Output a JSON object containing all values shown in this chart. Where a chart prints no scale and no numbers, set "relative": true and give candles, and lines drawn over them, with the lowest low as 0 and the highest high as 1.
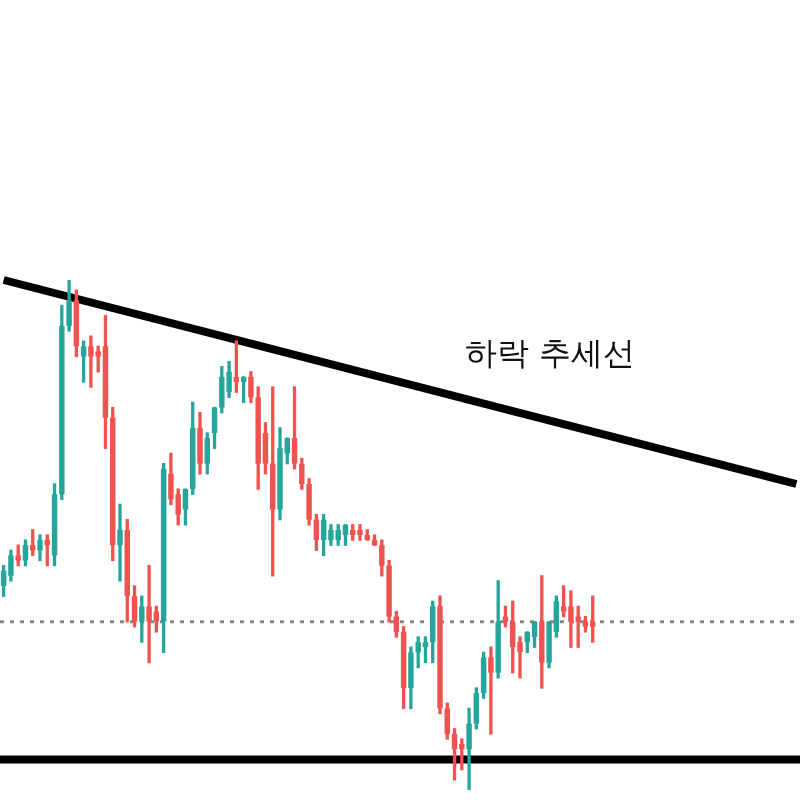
{
  "chart_data": {
    "type": "candlestick",
    "relative": true,
    "categories": [
      null,
      null,
      null,
      null,
      null,
      null,
      null,
      null,
      null,
      null,
      null,
      null,
      null,
      null,
      null,
      null,
      null,
      null,
      null,
      null,
      null,
      null,
      null,
      null,
      null,
      null,
      null,
      null,
      null,
      null,
      null,
      null,
      null,
      null,
      null,
      null,
      null,
      null,
      null,
      null,
      null,
      null,
      null,
      null,
      null,
      null,
      null,
      null,
      null,
      null,
      null,
      null,
      null,
      null,
      null,
      null,
      null,
      null,
      null,
      null,
      null,
      null,
      null,
      null,
      null,
      null,
      null,
      null,
      null,
      null,
      null,
      null,
      null,
      null,
      null,
      null,
      null,
      null,
      null,
      null,
      null,
      null,
      null,
      null,
      null,
      null,
      null,
      null,
      null,
      null,
      null,
      null,
      null,
      null,
      null,
      null,
      null,
      null,
      null,
      null,
      null,
      null,
      null,
      null,
      null,
      null,
      null,
      null,
      null,
      null
    ],
    "ohlc": [
      [
        0.4,
        0.44,
        0.38,
        0.43
      ],
      [
        0.42,
        0.47,
        0.41,
        0.46
      ],
      [
        0.46,
        0.48,
        0.44,
        0.45
      ],
      [
        0.45,
        0.49,
        0.44,
        0.48
      ],
      [
        0.48,
        0.51,
        0.46,
        0.47
      ],
      [
        0.47,
        0.5,
        0.45,
        0.49
      ],
      [
        0.49,
        0.5,
        0.44,
        0.48
      ],
      [
        0.46,
        0.6,
        0.44,
        0.58
      ],
      [
        0.58,
        0.95,
        0.57,
        0.91
      ],
      [
        0.91,
        1.0,
        0.9,
        0.96
      ],
      [
        0.96,
        0.98,
        0.85,
        0.87
      ],
      [
        0.85,
        0.88,
        0.8,
        0.87
      ],
      [
        0.87,
        0.89,
        0.79,
        0.85
      ],
      [
        0.86,
        0.87,
        0.82,
        0.85
      ],
      [
        0.87,
        0.93,
        0.67,
        0.73
      ],
      [
        0.73,
        0.75,
        0.45,
        0.48
      ],
      [
        0.48,
        0.56,
        0.41,
        0.51
      ],
      [
        0.51,
        0.53,
        0.33,
        0.38
      ],
      [
        0.38,
        0.4,
        0.32,
        0.33
      ],
      [
        0.33,
        0.38,
        0.29,
        0.36
      ],
      [
        0.36,
        0.44,
        0.25,
        0.33
      ],
      [
        0.35,
        0.36,
        0.31,
        0.33
      ],
      [
        0.33,
        0.64,
        0.27,
        0.63
      ],
      [
        0.62,
        0.66,
        0.56,
        0.57
      ],
      [
        0.58,
        0.59,
        0.52,
        0.54
      ],
      [
        0.55,
        0.59,
        0.52,
        0.59
      ],
      [
        0.59,
        0.76,
        0.58,
        0.71
      ],
      [
        0.71,
        0.74,
        0.62,
        0.64
      ],
      [
        0.64,
        0.7,
        0.62,
        0.69
      ],
      [
        0.7,
        0.75,
        0.67,
        0.75
      ],
      [
        0.75,
        0.83,
        0.74,
        0.81
      ],
      [
        0.78,
        0.84,
        0.77,
        0.82
      ],
      [
        0.81,
        0.88,
        0.78,
        0.8
      ],
      [
        0.8,
        0.81,
        0.76,
        0.81
      ],
      [
        0.81,
        0.82,
        0.76,
        0.77
      ],
      [
        0.77,
        0.79,
        0.59,
        0.64
      ],
      [
        0.7,
        0.72,
        0.62,
        0.64
      ],
      [
        0.64,
        0.79,
        0.42,
        0.55
      ],
      [
        0.55,
        0.71,
        0.53,
        0.67
      ],
      [
        0.66,
        0.69,
        0.64,
        0.69
      ],
      [
        0.69,
        0.79,
        0.63,
        0.64
      ],
      [
        0.64,
        0.65,
        0.59,
        0.6
      ],
      [
        0.6,
        0.61,
        0.52,
        0.53
      ],
      [
        0.53,
        0.54,
        0.47,
        0.49
      ],
      [
        0.49,
        0.54,
        0.46,
        0.53
      ],
      [
        0.49,
        0.52,
        0.48,
        0.51
      ],
      [
        0.49,
        0.52,
        0.48,
        0.51
      ],
      [
        0.5,
        0.52,
        0.48,
        0.52
      ],
      [
        0.51,
        0.52,
        0.49,
        0.5
      ],
      [
        0.51,
        0.52,
        0.49,
        0.5
      ],
      [
        0.5,
        0.51,
        0.49,
        0.49
      ],
      [
        0.49,
        0.5,
        0.48,
        0.48
      ],
      [
        0.48,
        0.49,
        0.42,
        0.44
      ],
      [
        0.44,
        0.45,
        0.33,
        0.34
      ],
      [
        0.34,
        0.35,
        0.3,
        0.31
      ],
      [
        0.31,
        0.32,
        0.16,
        0.2
      ],
      [
        0.2,
        0.28,
        0.16,
        0.27
      ],
      [
        0.27,
        0.3,
        0.24,
        0.29
      ],
      [
        0.28,
        0.3,
        0.25,
        0.29
      ],
      [
        0.29,
        0.37,
        0.25,
        0.36
      ],
      [
        0.36,
        0.38,
        0.15,
        0.16
      ],
      [
        0.16,
        0.17,
        0.1,
        0.11
      ],
      [
        0.11,
        0.12,
        0.02,
        0.08
      ],
      [
        0.09,
        0.1,
        0.04,
        0.08
      ],
      [
        0.08,
        0.16,
        0.0,
        0.13
      ],
      [
        0.13,
        0.2,
        0.12,
        0.19
      ],
      [
        0.19,
        0.27,
        0.18,
        0.26
      ],
      [
        0.26,
        0.28,
        0.11,
        0.23
      ],
      [
        0.23,
        0.41,
        0.22,
        0.33
      ],
      [
        0.34,
        0.36,
        0.32,
        0.33
      ],
      [
        0.33,
        0.37,
        0.23,
        0.28
      ],
      [
        0.29,
        0.3,
        0.22,
        0.27
      ],
      [
        0.29,
        0.31,
        0.27,
        0.31
      ],
      [
        0.3,
        0.33,
        0.28,
        0.33
      ],
      [
        0.33,
        0.42,
        0.2,
        0.25
      ],
      [
        0.25,
        0.33,
        0.24,
        0.33
      ],
      [
        0.31,
        0.38,
        0.3,
        0.37
      ],
      [
        0.36,
        0.4,
        0.34,
        0.35
      ],
      [
        0.36,
        0.39,
        0.28,
        0.33
      ],
      [
        0.34,
        0.36,
        0.28,
        0.33
      ],
      [
        0.33,
        0.34,
        0.31,
        0.32
      ],
      [
        0.33,
        0.38,
        0.29,
        0.32
      ],
      null,
      null,
      null,
      null,
      null,
      null,
      null,
      null,
      null,
      null,
      null,
      null,
      null,
      null,
      null,
      null,
      null,
      null,
      null,
      null,
      null,
      null,
      null,
      null,
      null,
      null,
      null,
      null
    ],
    "colors": [
      "#26a69a",
      "#26a69a",
      "#ef5350",
      "#26a69a",
      "#ef5350",
      "#26a69a",
      "#ef5350",
      "#26a69a",
      "#26a69a",
      "#26a69a",
      "#ef5350",
      "#26a69a",
      "#ef5350",
      "#ef5350",
      "#ef5350",
      "#ef5350",
      "#26a69a",
      "#ef5350",
      "#ef5350",
      "#26a69a",
      "#ef5350",
      "#ef5350",
      "#26a69a",
      "#ef5350",
      "#ef5350",
      "#26a69a",
      "#26a69a",
      "#ef5350",
      "#26a69a",
      "#26a69a",
      "#26a69a",
      "#26a69a",
      "#ef5350",
      "#26a69a",
      "#ef5350",
      "#ef5350",
      "#ef5350",
      "#ef5350",
      "#26a69a",
      "#26a69a",
      "#ef5350",
      "#ef5350",
      "#ef5350",
      "#ef5350",
      "#26a69a",
      "#26a69a",
      "#26a69a",
      "#26a69a",
      "#ef5350",
      "#ef5350",
      "#ef5350",
      "#ef5350",
      "#ef5350",
      "#ef5350",
      "#ef5350",
      "#ef5350",
      "#26a69a",
      "#26a69a",
      "#26a69a",
      "#26a69a",
      "#ef5350",
      "#ef5350",
      "#ef5350",
      "#ef5350",
      "#26a69a",
      "#26a69a",
      "#26a69a",
      "#ef5350",
      "#26a69a",
      "#ef5350",
      "#ef5350",
      "#ef5350",
      "#26a69a",
      "#26a69a",
      "#ef5350",
      "#26a69a",
      "#26a69a",
      "#ef5350",
      "#ef5350",
      "#ef5350",
      "#ef5350",
      "#ef5350",
      null,
      null,
      null,
      null,
      null,
      null,
      null,
      null,
      null,
      null,
      null,
      null,
      null,
      null,
      null,
      null,
      null,
      null,
      null,
      null,
      null,
      null,
      null,
      null,
      null,
      null,
      null,
      null
    ],
    "series": [
      {
        "type": "line",
        "color": "#000000",
        "values": [
          1.0,
          null,
          null,
          null,
          null,
          null,
          null,
          null,
          null,
          null,
          null,
          null,
          null,
          null,
          null,
          null,
          null,
          null,
          null,
          null,
          null,
          null,
          null,
          null,
          null,
          null,
          null,
          null,
          null,
          null,
          null,
          null,
          null,
          null,
          null,
          null,
          null,
          null,
          null,
          null,
          null,
          null,
          null,
          null,
          null,
          null,
          null,
          null,
          null,
          null,
          null,
          null,
          null,
          null,
          null,
          null,
          null,
          null,
          null,
          null,
          null,
          null,
          null,
          null,
          null,
          null,
          null,
          null,
          null,
          null,
          null,
          null,
          null,
          null,
          null,
          null,
          null,
          null,
          null,
          null,
          null,
          null,
          null,
          null,
          null,
          null,
          null,
          null,
          null,
          null,
          null,
          null,
          null,
          null,
          null,
          null,
          null,
          null,
          null,
          null,
          null,
          null,
          null,
          null,
          null,
          null,
          null,
          null,
          null,
          0.6
        ]
      }
    ],
    "ref_lines": [
      {
        "axis": "y",
        "value": 0.06,
        "color": "#000000"
      },
      {
        "axis": "y",
        "value": 0.33,
        "color": "#888888",
        "line_style": "dotted"
      }
    ],
    "annotations": [
      "하락 추세선"
    ]
  }
}
